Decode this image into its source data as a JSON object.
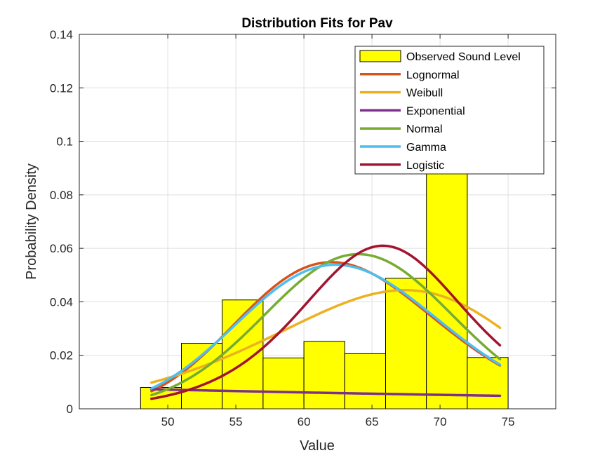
{
  "chart_data": {
    "type": "histogram-with-density-fits",
    "title": "Distribution Fits for Pav",
    "xlabel": "Value",
    "ylabel": "Probability Density",
    "xlim": [
      43.5,
      78.5
    ],
    "ylim": [
      0,
      0.14
    ],
    "xticks": [
      50,
      55,
      60,
      65,
      70,
      75
    ],
    "yticks": [
      0,
      0.02,
      0.04,
      0.06,
      0.08,
      0.1,
      0.12,
      0.14
    ],
    "ytick_labels": [
      "0",
      "0.02",
      "0.04",
      "0.06",
      "0.08",
      "0.1",
      "0.12",
      "0.14"
    ],
    "grid": true,
    "legend_position": "top-right",
    "histogram": {
      "name": "Observed Sound Level",
      "color": "#FFFF00",
      "edge_color": "#000000",
      "bin_edges": [
        48,
        51,
        54,
        57,
        60,
        63,
        66,
        69,
        72,
        75
      ],
      "densities": [
        0.008,
        0.0245,
        0.0407,
        0.019,
        0.0252,
        0.0206,
        0.0488,
        0.0895,
        0.0192
      ]
    },
    "fit_x_range": [
      48.8,
      74.4
    ],
    "series": [
      {
        "name": "Lognormal",
        "color": "#D95319",
        "model": "lognormal",
        "mu": 4.1412,
        "sigma": 0.1165
      },
      {
        "name": "Weibull",
        "color": "#EDB120",
        "model": "weibull",
        "k": 8.2,
        "lambda": 68.5
      },
      {
        "name": "Exponential",
        "color": "#7E2F8E",
        "model": "exponential",
        "mean": 63.0
      },
      {
        "name": "Normal",
        "color": "#77AC30",
        "model": "normal",
        "mean": 64.0,
        "sd": 6.9
      },
      {
        "name": "Gamma",
        "color": "#4DBEEE",
        "model": "gamma",
        "shape": 72.0,
        "scale": 0.8778
      },
      {
        "name": "Logistic",
        "color": "#A2142F",
        "model": "logistic",
        "mu": 65.8,
        "s": 4.1
      }
    ]
  }
}
